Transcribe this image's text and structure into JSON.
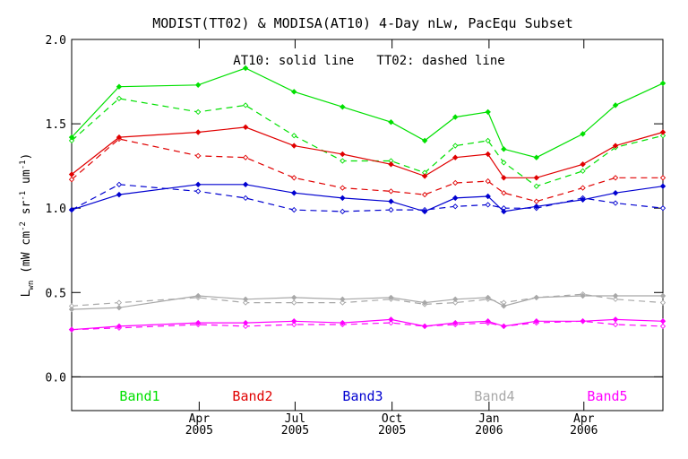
{
  "chart_data": {
    "type": "line",
    "title": "MODIST(TT02) & MODISA(AT10) 4-Day nLw, PacEqu Subset",
    "annotation": "AT10: solid line   TT02: dashed line",
    "ylabel_main": "L",
    "ylabel_sub": "wn",
    "ylabel_rest": " (mW cm",
    "ylabel_sup1": "-2",
    "ylabel_mid": " sr",
    "ylabel_sup2": "-1",
    "ylabel_end": " um",
    "ylabel_sup3": "-1",
    "ylabel_close": ")",
    "ylim": [
      -0.2,
      2.0
    ],
    "yticks": [
      0.0,
      0.5,
      1.0,
      1.5,
      2.0
    ],
    "ytick_labels": [
      "0.0",
      "0.5",
      "1.0",
      "1.5",
      "2.0"
    ],
    "xlim": [
      "2004-12-01",
      "2006-06-15"
    ],
    "x": [
      "2004-12-01",
      "2005-01-15",
      "2005-03-31",
      "2005-05-15",
      "2005-06-30",
      "2005-08-15",
      "2005-09-30",
      "2005-11-01",
      "2005-11-30",
      "2005-12-31",
      "2006-01-15",
      "2006-02-15",
      "2006-03-31",
      "2006-05-01",
      "2006-06-15"
    ],
    "xticks": [
      {
        "date": "2005-04-01",
        "line1": "Apr",
        "line2": "2005"
      },
      {
        "date": "2005-07-01",
        "line1": "Jul",
        "line2": "2005"
      },
      {
        "date": "2005-10-01",
        "line1": "Oct",
        "line2": "2005"
      },
      {
        "date": "2006-01-01",
        "line1": "Jan",
        "line2": "2006"
      },
      {
        "date": "2006-04-01",
        "line1": "Apr",
        "line2": "2006"
      }
    ],
    "zero_line": 0.0,
    "series": [
      {
        "name": "Band1",
        "color": "#00e000",
        "solid": [
          1.42,
          1.72,
          1.73,
          1.83,
          1.69,
          1.6,
          1.51,
          1.4,
          1.54,
          1.57,
          1.35,
          1.3,
          1.44,
          1.61,
          1.74
        ],
        "dashed": [
          1.4,
          1.65,
          1.57,
          1.61,
          1.43,
          1.28,
          1.28,
          1.21,
          1.37,
          1.4,
          1.27,
          1.13,
          1.22,
          1.36,
          1.43
        ]
      },
      {
        "name": "Band2",
        "color": "#e00000",
        "solid": [
          1.2,
          1.42,
          1.45,
          1.48,
          1.37,
          1.32,
          1.26,
          1.19,
          1.3,
          1.32,
          1.18,
          1.18,
          1.26,
          1.37,
          1.45
        ],
        "dashed": [
          1.17,
          1.41,
          1.31,
          1.3,
          1.18,
          1.12,
          1.1,
          1.08,
          1.15,
          1.16,
          1.09,
          1.04,
          1.12,
          1.18,
          1.18
        ]
      },
      {
        "name": "Band3",
        "color": "#0000d0",
        "solid": [
          0.99,
          1.08,
          1.14,
          1.14,
          1.09,
          1.06,
          1.04,
          0.98,
          1.06,
          1.07,
          0.98,
          1.01,
          1.05,
          1.09,
          1.13
        ],
        "dashed": [
          0.99,
          1.14,
          1.1,
          1.06,
          0.99,
          0.98,
          0.99,
          0.99,
          1.01,
          1.02,
          1.0,
          1.0,
          1.06,
          1.03,
          1.0
        ]
      },
      {
        "name": "Band4",
        "color": "#a8a8a8",
        "solid": [
          0.4,
          0.41,
          0.48,
          0.46,
          0.47,
          0.46,
          0.47,
          0.44,
          0.46,
          0.47,
          0.42,
          0.47,
          0.48,
          0.48,
          0.48
        ],
        "dashed": [
          0.42,
          0.44,
          0.47,
          0.44,
          0.44,
          0.44,
          0.46,
          0.43,
          0.44,
          0.46,
          0.44,
          0.47,
          0.49,
          0.46,
          0.44
        ]
      },
      {
        "name": "Band5",
        "color": "#ff00ff",
        "solid": [
          0.28,
          0.3,
          0.32,
          0.32,
          0.33,
          0.32,
          0.34,
          0.3,
          0.32,
          0.33,
          0.3,
          0.33,
          0.33,
          0.34,
          0.33
        ],
        "dashed": [
          0.28,
          0.29,
          0.31,
          0.3,
          0.31,
          0.31,
          0.32,
          0.3,
          0.31,
          0.32,
          0.3,
          0.32,
          0.33,
          0.31,
          0.3
        ]
      }
    ]
  }
}
